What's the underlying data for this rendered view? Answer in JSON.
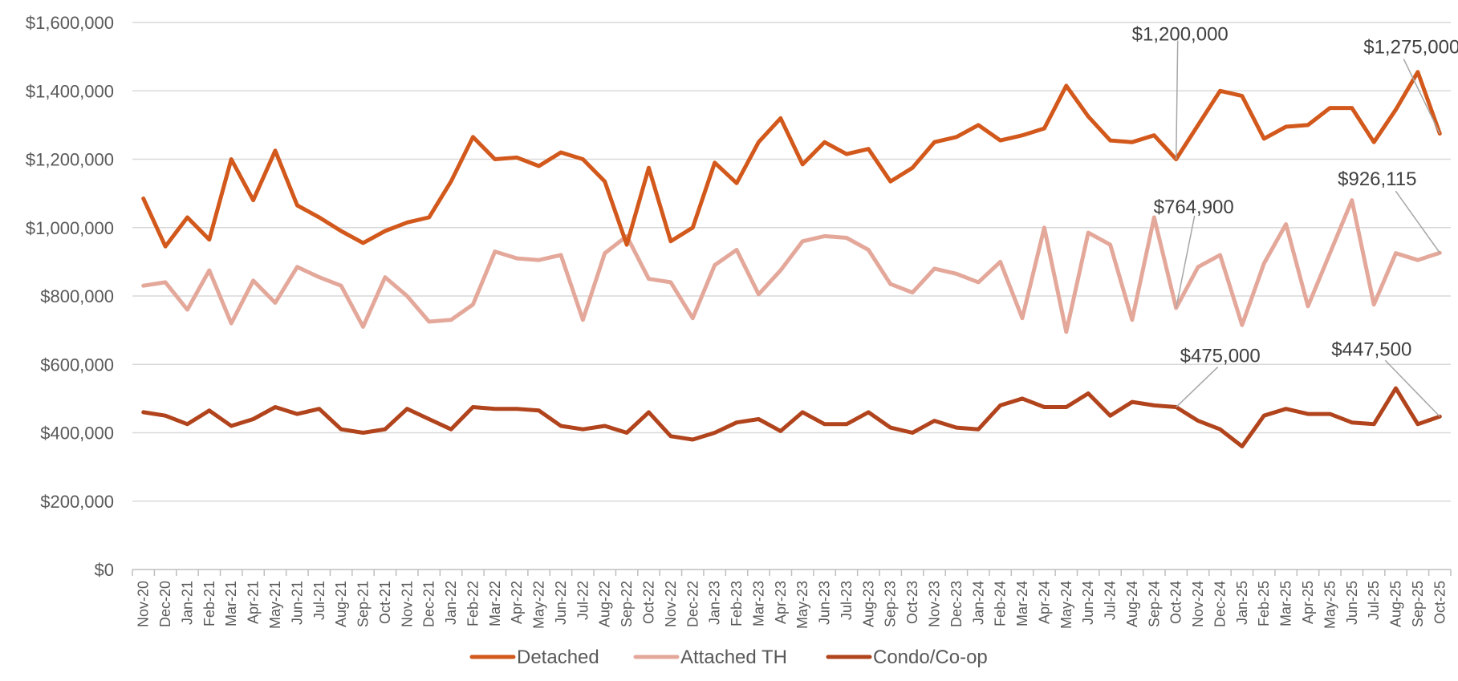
{
  "chart_data": {
    "type": "line",
    "title": "",
    "xlabel": "",
    "ylabel": "",
    "ylim": [
      0,
      1600000
    ],
    "yticks": [
      0,
      200000,
      400000,
      600000,
      800000,
      1000000,
      1200000,
      1400000,
      1600000
    ],
    "ytick_labels": [
      "$0",
      "$200,000",
      "$400,000",
      "$600,000",
      "$800,000",
      "$1,000,000",
      "$1,200,000",
      "$1,400,000",
      "$1,600,000"
    ],
    "grid": true,
    "legend_position": "bottom",
    "categories": [
      "Nov-20",
      "Dec-20",
      "Jan-21",
      "Feb-21",
      "Mar-21",
      "Apr-21",
      "May-21",
      "Jun-21",
      "Jul-21",
      "Aug-21",
      "Sep-21",
      "Oct-21",
      "Nov-21",
      "Dec-21",
      "Jan-22",
      "Feb-22",
      "Mar-22",
      "Apr-22",
      "May-22",
      "Jun-22",
      "Jul-22",
      "Aug-22",
      "Sep-22",
      "Oct-22",
      "Nov-22",
      "Dec-22",
      "Jan-23",
      "Feb-23",
      "Mar-23",
      "Apr-23",
      "May-23",
      "Jun-23",
      "Jul-23",
      "Aug-23",
      "Sep-23",
      "Oct-23",
      "Nov-23",
      "Dec-23",
      "Jan-24",
      "Feb-24",
      "Mar-24",
      "Apr-24",
      "May-24",
      "Jun-24",
      "Jul-24",
      "Aug-24",
      "Sep-24",
      "Oct-24",
      "Nov-24",
      "Dec-24",
      "Jan-25",
      "Feb-25",
      "Mar-25",
      "Apr-25",
      "May-25",
      "Jun-25",
      "Jul-25",
      "Aug-25",
      "Sep-25",
      "Oct-25"
    ],
    "series": [
      {
        "name": "Detached",
        "color": "#d2581b",
        "values": [
          1085000,
          945000,
          1030000,
          965000,
          1200000,
          1080000,
          1225000,
          1065000,
          1030000,
          990000,
          955000,
          990000,
          1015000,
          1030000,
          1135000,
          1265000,
          1200000,
          1205000,
          1180000,
          1220000,
          1200000,
          1135000,
          950000,
          1175000,
          960000,
          1000000,
          1190000,
          1130000,
          1250000,
          1320000,
          1185000,
          1250000,
          1215000,
          1230000,
          1135000,
          1175000,
          1250000,
          1265000,
          1300000,
          1255000,
          1270000,
          1290000,
          1415000,
          1325000,
          1255000,
          1250000,
          1270000,
          1200000,
          1300000,
          1400000,
          1385000,
          1260000,
          1295000,
          1300000,
          1350000,
          1350000,
          1250000,
          1345000,
          1455000,
          1275000
        ]
      },
      {
        "name": "Attached TH",
        "color": "#e4a89b",
        "values": [
          830000,
          840000,
          760000,
          875000,
          720000,
          845000,
          780000,
          885000,
          855000,
          830000,
          710000,
          855000,
          800000,
          725000,
          730000,
          775000,
          930000,
          910000,
          905000,
          920000,
          730000,
          925000,
          975000,
          850000,
          840000,
          735000,
          890000,
          935000,
          805000,
          875000,
          960000,
          975000,
          970000,
          935000,
          835000,
          810000,
          880000,
          865000,
          840000,
          900000,
          735000,
          1000000,
          695000,
          985000,
          950000,
          730000,
          1030000,
          764900,
          885000,
          920000,
          715000,
          895000,
          1010000,
          770000,
          925000,
          1080000,
          775000,
          925000,
          905000,
          926115
        ]
      },
      {
        "name": "Condo/Co-op",
        "color": "#b1441c",
        "values": [
          460000,
          450000,
          425000,
          465000,
          420000,
          440000,
          475000,
          455000,
          470000,
          410000,
          400000,
          410000,
          470000,
          440000,
          410000,
          475000,
          470000,
          470000,
          465000,
          420000,
          410000,
          420000,
          400000,
          460000,
          390000,
          380000,
          400000,
          430000,
          440000,
          405000,
          460000,
          425000,
          425000,
          460000,
          415000,
          400000,
          435000,
          415000,
          410000,
          480000,
          500000,
          475000,
          475000,
          515000,
          450000,
          490000,
          480000,
          475000,
          435000,
          410000,
          360000,
          450000,
          470000,
          455000,
          455000,
          430000,
          425000,
          530000,
          425000,
          447500
        ]
      }
    ],
    "annotations": [
      {
        "series": 0,
        "index": 47,
        "label": "$1,200,000"
      },
      {
        "series": 0,
        "index": 59,
        "label": "$1,275,000"
      },
      {
        "series": 1,
        "index": 47,
        "label": "$764,900"
      },
      {
        "series": 1,
        "index": 59,
        "label": "$926,115"
      },
      {
        "series": 2,
        "index": 47,
        "label": "$475,000"
      },
      {
        "series": 2,
        "index": 59,
        "label": "$447,500"
      }
    ]
  }
}
